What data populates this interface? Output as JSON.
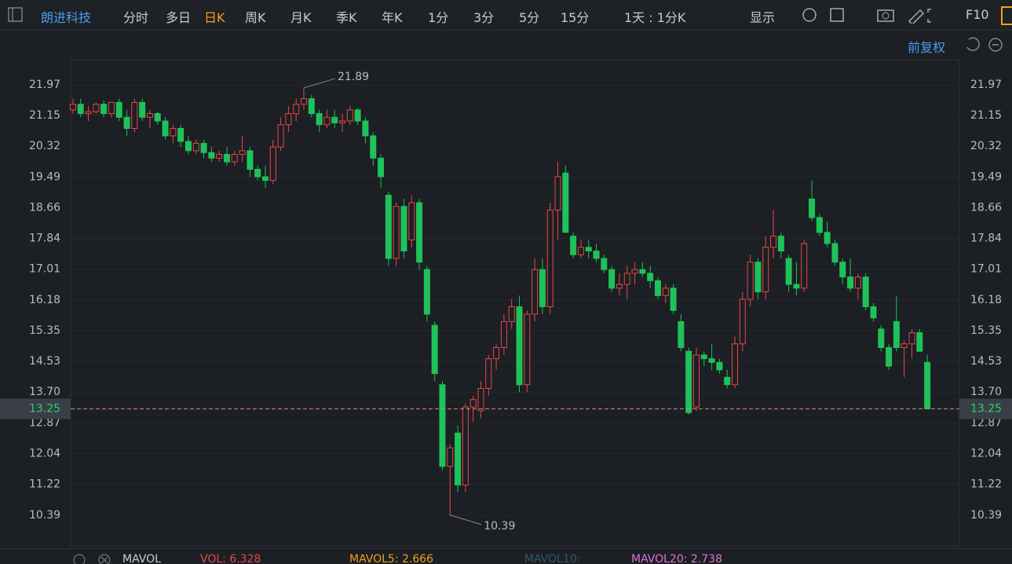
{
  "toolbar": {
    "stock": "朗进科技",
    "periods": [
      "分时",
      "多日",
      "日K",
      "周K",
      "月K",
      "季K",
      "年K",
      "1分",
      "3分",
      "5分",
      "15分"
    ],
    "interval": "1天 : 1分K",
    "display": "显示",
    "f10": "F10"
  },
  "adjust": "前复权",
  "chart_data": {
    "type": "candlestick",
    "candles": [
      [
        21.3,
        21.6,
        21.2,
        21.45
      ],
      [
        21.45,
        21.6,
        21.1,
        21.2
      ],
      [
        21.2,
        21.4,
        21.0,
        21.25
      ],
      [
        21.25,
        21.5,
        21.2,
        21.45
      ],
      [
        21.45,
        21.55,
        21.1,
        21.2
      ],
      [
        21.2,
        21.5,
        21.1,
        21.5
      ],
      [
        21.5,
        21.6,
        21.0,
        21.1
      ],
      [
        21.1,
        21.3,
        20.6,
        20.8
      ],
      [
        20.8,
        21.6,
        20.7,
        21.5
      ],
      [
        21.5,
        21.6,
        21.0,
        21.1
      ],
      [
        21.1,
        21.3,
        20.8,
        21.2
      ],
      [
        21.2,
        21.25,
        20.9,
        21.0
      ],
      [
        21.0,
        21.1,
        20.5,
        20.6
      ],
      [
        20.6,
        20.9,
        20.4,
        20.8
      ],
      [
        20.8,
        20.9,
        20.3,
        20.45
      ],
      [
        20.45,
        20.6,
        20.1,
        20.2
      ],
      [
        20.2,
        20.5,
        20.1,
        20.4
      ],
      [
        20.4,
        20.5,
        20.0,
        20.15
      ],
      [
        20.15,
        20.3,
        19.9,
        20.0
      ],
      [
        20.0,
        20.2,
        19.9,
        20.1
      ],
      [
        20.1,
        20.3,
        19.8,
        19.9
      ],
      [
        19.9,
        20.2,
        19.8,
        20.1
      ],
      [
        20.1,
        20.6,
        19.9,
        20.2
      ],
      [
        20.2,
        20.3,
        19.5,
        19.7
      ],
      [
        19.7,
        19.8,
        19.4,
        19.5
      ],
      [
        19.5,
        19.8,
        19.2,
        19.4
      ],
      [
        19.4,
        20.5,
        19.3,
        20.3
      ],
      [
        20.3,
        21.1,
        20.2,
        20.9
      ],
      [
        20.9,
        21.4,
        20.7,
        21.2
      ],
      [
        21.2,
        21.6,
        21.0,
        21.45
      ],
      [
        21.45,
        21.89,
        21.3,
        21.6
      ],
      [
        21.6,
        21.7,
        21.1,
        21.2
      ],
      [
        21.2,
        21.3,
        20.7,
        20.9
      ],
      [
        20.9,
        21.3,
        20.8,
        21.1
      ],
      [
        21.1,
        21.3,
        20.8,
        20.95
      ],
      [
        20.95,
        21.2,
        20.7,
        21.0
      ],
      [
        21.0,
        21.4,
        20.9,
        21.3
      ],
      [
        21.3,
        21.35,
        20.9,
        21.0
      ],
      [
        21.0,
        21.1,
        20.4,
        20.6
      ],
      [
        20.6,
        20.7,
        19.8,
        20.0
      ],
      [
        20.0,
        20.1,
        19.2,
        19.5
      ],
      [
        19.0,
        19.1,
        17.1,
        17.3
      ],
      [
        17.3,
        18.8,
        17.1,
        18.7
      ],
      [
        18.7,
        18.9,
        17.3,
        17.5
      ],
      [
        17.8,
        19.0,
        17.6,
        18.8
      ],
      [
        18.8,
        18.9,
        17.0,
        17.2
      ],
      [
        17.0,
        17.1,
        15.6,
        15.8
      ],
      [
        15.5,
        15.6,
        14.0,
        14.2
      ],
      [
        13.9,
        14.0,
        11.6,
        11.7
      ],
      [
        11.7,
        12.3,
        10.39,
        12.2
      ],
      [
        12.6,
        12.8,
        11.0,
        11.2
      ],
      [
        11.2,
        13.4,
        11.0,
        13.3
      ],
      [
        13.3,
        13.6,
        12.9,
        13.5
      ],
      [
        13.2,
        14.0,
        13.0,
        13.8
      ],
      [
        13.8,
        14.7,
        13.6,
        14.6
      ],
      [
        14.6,
        15.0,
        14.3,
        14.9
      ],
      [
        14.9,
        15.8,
        14.7,
        15.6
      ],
      [
        15.6,
        16.2,
        15.4,
        16.0
      ],
      [
        16.0,
        16.3,
        13.7,
        13.9
      ],
      [
        13.9,
        15.9,
        13.7,
        15.8
      ],
      [
        15.8,
        17.3,
        15.6,
        17.0
      ],
      [
        17.0,
        17.3,
        15.8,
        16.0
      ],
      [
        16.0,
        18.8,
        15.8,
        18.6
      ],
      [
        18.6,
        19.9,
        17.8,
        19.5
      ],
      [
        19.6,
        19.8,
        18.0,
        18.0
      ],
      [
        17.9,
        18.0,
        17.3,
        17.4
      ],
      [
        17.4,
        17.8,
        17.3,
        17.6
      ],
      [
        17.6,
        17.8,
        17.3,
        17.5
      ],
      [
        17.5,
        17.7,
        17.2,
        17.3
      ],
      [
        17.3,
        17.4,
        16.9,
        17.0
      ],
      [
        17.0,
        17.1,
        16.4,
        16.5
      ],
      [
        16.5,
        16.9,
        16.3,
        16.6
      ],
      [
        16.6,
        17.1,
        16.2,
        16.9
      ],
      [
        16.9,
        17.2,
        16.6,
        17.0
      ],
      [
        17.0,
        17.2,
        16.8,
        16.9
      ],
      [
        16.9,
        17.1,
        16.5,
        16.7
      ],
      [
        16.7,
        16.8,
        16.2,
        16.3
      ],
      [
        16.3,
        16.6,
        16.1,
        16.5
      ],
      [
        16.5,
        16.6,
        15.8,
        15.9
      ],
      [
        15.6,
        15.8,
        14.8,
        14.9
      ],
      [
        14.8,
        14.9,
        13.1,
        13.15
      ],
      [
        13.3,
        14.9,
        13.2,
        14.7
      ],
      [
        14.7,
        14.8,
        14.4,
        14.6
      ],
      [
        14.6,
        15.0,
        14.3,
        14.5
      ],
      [
        14.5,
        14.6,
        14.2,
        14.3
      ],
      [
        14.1,
        14.3,
        13.8,
        13.9
      ],
      [
        13.9,
        15.2,
        13.8,
        15.0
      ],
      [
        15.0,
        16.4,
        14.8,
        16.2
      ],
      [
        16.2,
        17.4,
        16.0,
        17.2
      ],
      [
        17.2,
        17.3,
        16.2,
        16.4
      ],
      [
        16.4,
        17.9,
        16.2,
        17.6
      ],
      [
        17.6,
        18.6,
        17.3,
        17.9
      ],
      [
        17.9,
        18.0,
        17.3,
        17.5
      ],
      [
        17.3,
        17.4,
        16.4,
        16.6
      ],
      [
        16.6,
        17.2,
        16.3,
        16.5
      ],
      [
        16.5,
        17.8,
        16.4,
        17.7
      ],
      [
        18.9,
        19.4,
        18.3,
        18.4
      ],
      [
        18.4,
        18.5,
        17.9,
        18.0
      ],
      [
        18.0,
        18.3,
        17.6,
        17.7
      ],
      [
        17.7,
        17.8,
        17.1,
        17.2
      ],
      [
        17.2,
        17.3,
        16.6,
        16.8
      ],
      [
        16.8,
        17.3,
        16.4,
        16.5
      ],
      [
        16.5,
        16.9,
        16.2,
        16.8
      ],
      [
        16.8,
        16.9,
        15.9,
        16.0
      ],
      [
        16.0,
        16.1,
        15.6,
        15.7
      ],
      [
        15.4,
        15.5,
        14.8,
        14.9
      ],
      [
        14.9,
        15.0,
        14.3,
        14.4
      ],
      [
        15.6,
        16.3,
        14.8,
        14.9
      ],
      [
        14.9,
        15.1,
        14.1,
        15.0
      ],
      [
        15.0,
        15.4,
        14.6,
        15.3
      ],
      [
        15.3,
        15.4,
        14.8,
        14.8
      ],
      [
        14.5,
        14.7,
        13.25,
        13.25
      ]
    ],
    "ylim": [
      9.56,
      22.65
    ],
    "yticks": [
      21.97,
      21.15,
      20.32,
      19.49,
      18.66,
      17.84,
      17.01,
      16.18,
      15.35,
      14.53,
      {
        "value": 13.7,
        "label": "13.70"
      },
      12.87,
      12.04,
      11.22,
      10.39
    ],
    "grid": true,
    "up_color": "#e8474a",
    "down_color": "#1fc25a",
    "last_price": 13.25,
    "high_mark": 21.89,
    "low_mark": 10.39
  },
  "indicator": {
    "name": "MAVOL",
    "vol": "VOL: 6.328",
    "mavol5": "MAVOL5: 2.666",
    "mavol10": "MAVOL10:",
    "mavol20": "MAVOL20: 2.738"
  }
}
